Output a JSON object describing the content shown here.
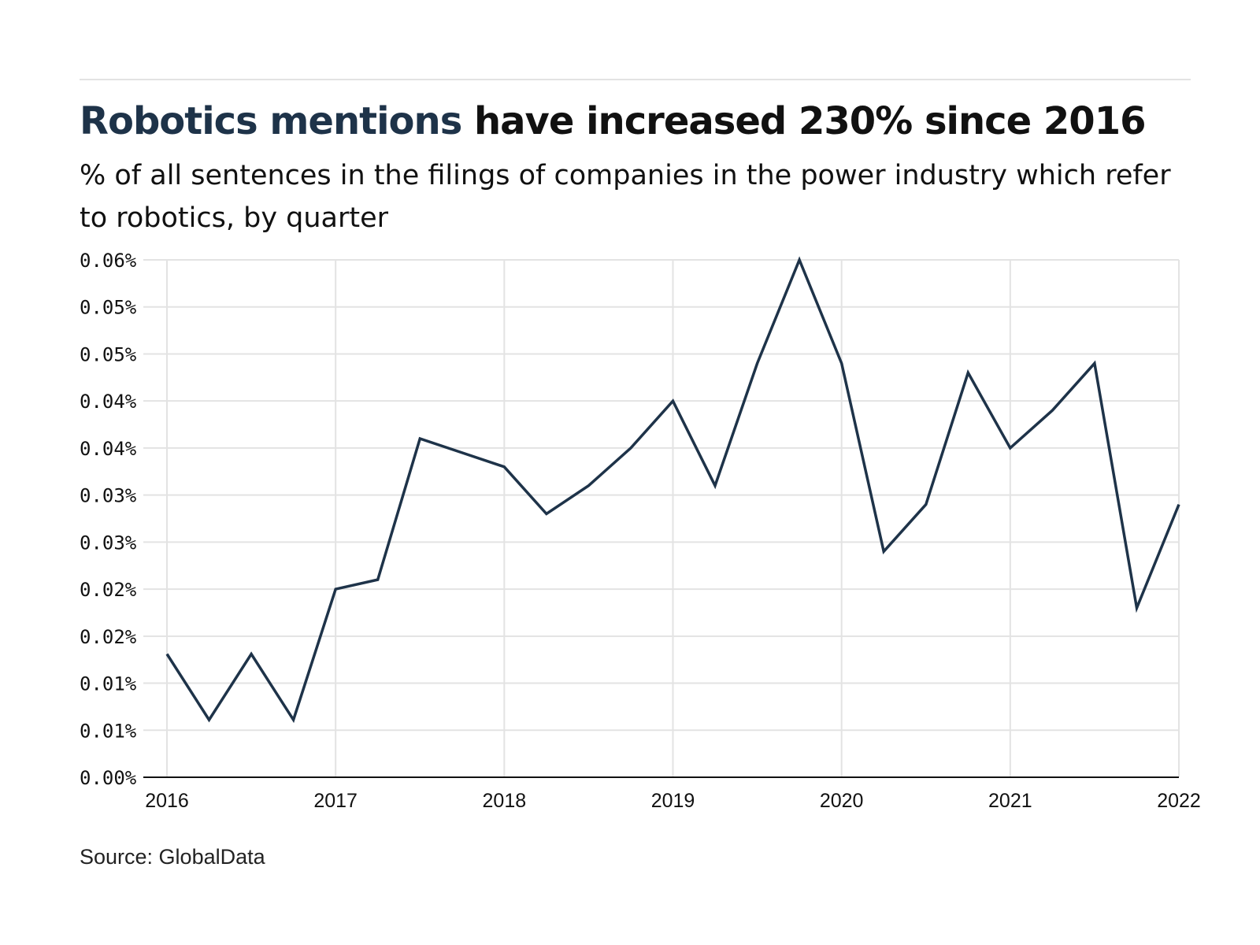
{
  "header": {
    "title_highlight": "Robotics mentions",
    "title_rest": " have increased 230% since 2016",
    "subtitle": "% of all sentences in the filings of companies in the power industry which refer to robotics, by quarter"
  },
  "source": "Source: GlobalData",
  "colors": {
    "line": "#1e3349",
    "grid": "#e3e3e3",
    "axis": "#111111",
    "text": "#111111"
  },
  "chart_data": {
    "type": "line",
    "title": "Robotics mentions have increased 230% since 2016",
    "subtitle": "% of all sentences in the filings of companies in the power industry which refer to robotics, by quarter",
    "xlabel": "",
    "ylabel": "",
    "grid": true,
    "legend": "none",
    "x_ticks": [
      "2016",
      "2017",
      "2018",
      "2019",
      "2020",
      "2021",
      "2022"
    ],
    "y_ticks": [
      "0.00%",
      "0.01%",
      "0.01%",
      "0.02%",
      "0.02%",
      "0.03%",
      "0.03%",
      "0.04%",
      "0.04%",
      "0.05%",
      "0.05%",
      "0.06%"
    ],
    "xlim": [
      2016,
      2022
    ],
    "ylim": [
      0,
      0.055
    ],
    "series": [
      {
        "x": [
          "Q1 2016",
          "Q2 2016",
          "Q3 2016",
          "Q4 2016",
          "Q1 2017",
          "Q2 2017",
          "Q3 2017",
          "Q4 2017",
          "Q1 2018",
          "Q2 2018",
          "Q3 2018",
          "Q4 2018",
          "Q1 2019",
          "Q2 2019",
          "Q3 2019",
          "Q4 2019",
          "Q1 2020",
          "Q2 2020",
          "Q3 2020",
          "Q4 2020",
          "Q1 2021",
          "Q2 2021",
          "Q3 2021",
          "Q4 2021",
          "Q1 2022"
        ],
        "values": [
          0.0131,
          0.0061,
          0.0131,
          0.0061,
          0.02,
          0.021,
          0.036,
          0.0345,
          0.033,
          0.028,
          0.031,
          0.035,
          0.04,
          0.031,
          0.044,
          0.055,
          0.044,
          0.024,
          0.029,
          0.043,
          0.035,
          0.039,
          0.044,
          0.018,
          0.029
        ]
      }
    ]
  }
}
